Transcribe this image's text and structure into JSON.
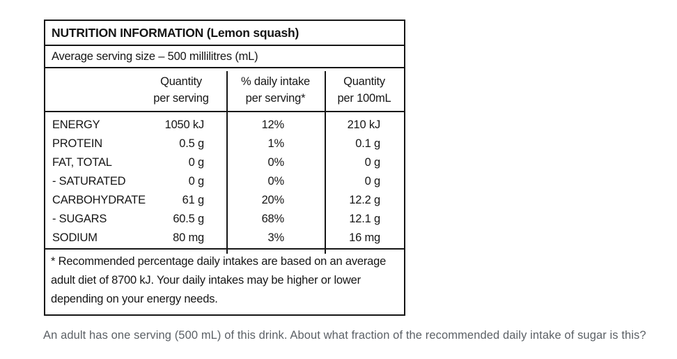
{
  "label": {
    "title": "NUTRITION INFORMATION (Lemon squash)",
    "serving_line": "Average serving size – 500 millilitres (mL)",
    "columns": [
      {
        "line1": "Quantity",
        "line2": "per serving"
      },
      {
        "line1": "% daily intake",
        "line2": "per serving*"
      },
      {
        "line1": "Quantity",
        "line2": "per 100mL"
      }
    ],
    "rows": [
      {
        "nutrient": "ENERGY",
        "per_serving": "1050 kJ",
        "daily_intake": "12%",
        "per_100ml": "210 kJ"
      },
      {
        "nutrient": "PROTEIN",
        "per_serving": "0.5 g",
        "daily_intake": "1%",
        "per_100ml": "0.1 g"
      },
      {
        "nutrient": "FAT, TOTAL",
        "per_serving": "0 g",
        "daily_intake": "0%",
        "per_100ml": "0 g"
      },
      {
        "nutrient": "- SATURATED",
        "per_serving": "0 g",
        "daily_intake": "0%",
        "per_100ml": "0 g"
      },
      {
        "nutrient": "CARBOHYDRATE",
        "per_serving": "61 g",
        "daily_intake": "20%",
        "per_100ml": "12.2 g"
      },
      {
        "nutrient": "- SUGARS",
        "per_serving": "60.5 g",
        "daily_intake": "68%",
        "per_100ml": "12.1 g"
      },
      {
        "nutrient": "SODIUM",
        "per_serving": "80 mg",
        "daily_intake": "3%",
        "per_100ml": "16 mg"
      }
    ],
    "footnote": "* Recommended percentage daily intakes are based on an average adult diet of 8700 kJ. Your daily intakes may be higher or lower depending on your energy needs."
  },
  "question": {
    "text": "An adult has one serving (500 mL) of this drink. About what fraction of the recommended daily intake of sugar is this?"
  },
  "colors": {
    "table_border": "#161616",
    "table_text": "#161616",
    "question_text": "#5c6166"
  }
}
